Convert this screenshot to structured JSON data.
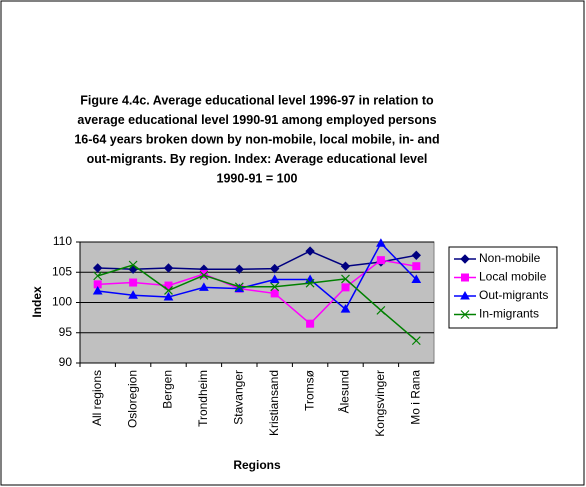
{
  "chart_data": {
    "type": "line",
    "title": [
      "Figure 4.4c. Average educational level 1996-97 in relation to",
      "average educational level 1990-91 among employed persons",
      "16-64 years broken down by non-mobile, local mobile, in- and",
      "out-migrants. By region. Index: Average educational level",
      "1990-91 = 100"
    ],
    "x_label": "Regions",
    "y_label": "Index",
    "categories": [
      "All regions",
      "Osloregion",
      "Bergen",
      "Trondheim",
      "Stavanger",
      "Kristiansand",
      "Tromsø",
      "Ålesund",
      "Kongsvinger",
      "Mo i Rana"
    ],
    "series": [
      {
        "name": "Non-mobile",
        "color": "#000080",
        "marker": "diamond",
        "values": [
          105.7,
          105.5,
          105.7,
          105.5,
          105.5,
          105.6,
          108.5,
          106.0,
          106.7,
          107.8
        ]
      },
      {
        "name": "Local mobile",
        "color": "#ff00ff",
        "marker": "square",
        "values": [
          103.0,
          103.3,
          102.8,
          104.7,
          102.3,
          101.5,
          96.5,
          102.5,
          107.0,
          106.0
        ]
      },
      {
        "name": "Out-migrants",
        "color": "#0000ff",
        "marker": "triangle",
        "values": [
          101.9,
          101.2,
          100.9,
          102.5,
          102.3,
          103.8,
          103.8,
          98.9,
          109.8,
          103.8
        ]
      },
      {
        "name": "In-migrants",
        "color": "#008000",
        "marker": "x",
        "values": [
          104.4,
          106.2,
          102.0,
          104.5,
          102.6,
          102.6,
          103.2,
          103.9,
          98.7,
          93.7
        ]
      }
    ],
    "ylim": [
      90,
      110
    ],
    "yticks": [
      90,
      95,
      100,
      105,
      110
    ],
    "grid": true,
    "legend": "right",
    "plot_background": "#c0c0c0"
  }
}
